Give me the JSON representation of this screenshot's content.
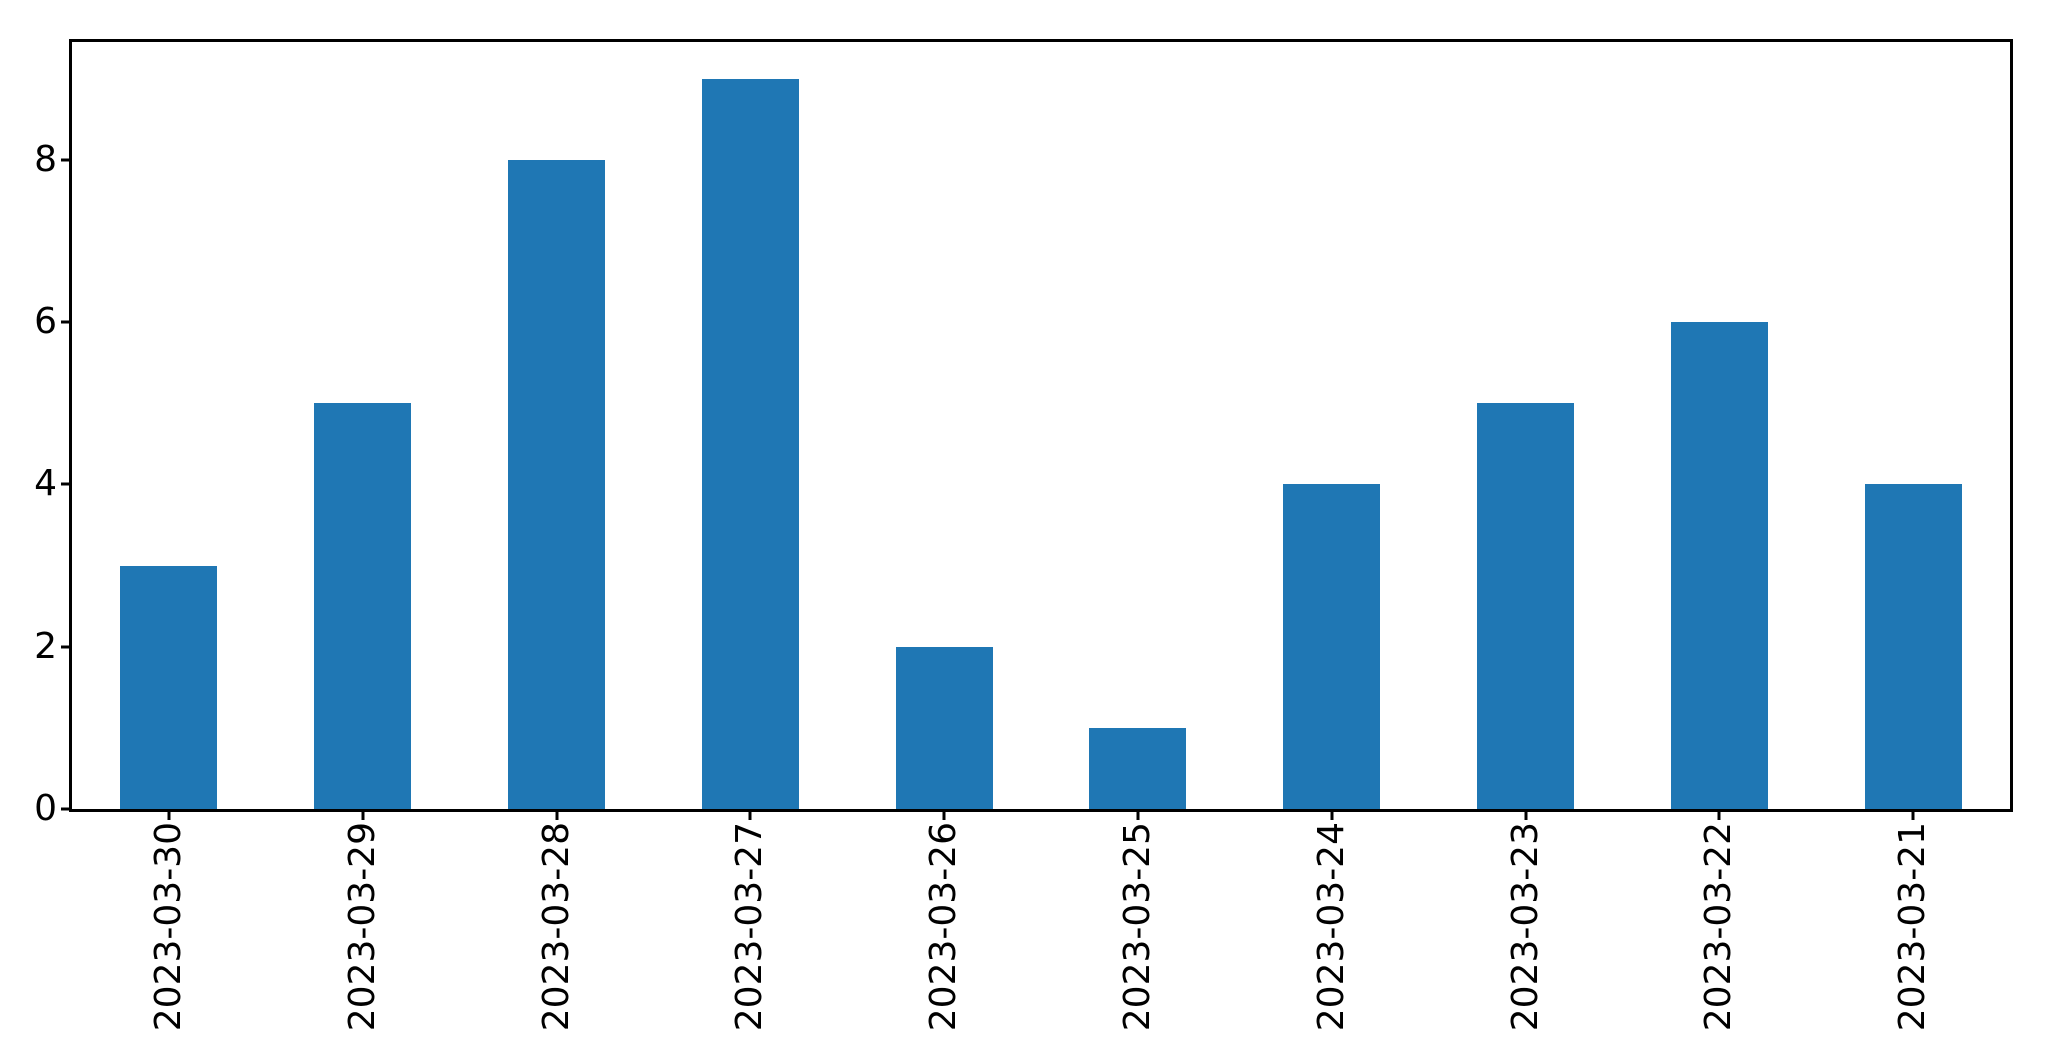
{
  "chart_data": {
    "type": "bar",
    "title": "",
    "xlabel": "",
    "ylabel": "",
    "categories": [
      "2023-03-30",
      "2023-03-29",
      "2023-03-28",
      "2023-03-27",
      "2023-03-26",
      "2023-03-25",
      "2023-03-24",
      "2023-03-23",
      "2023-03-22",
      "2023-03-21"
    ],
    "values": [
      3,
      5,
      8,
      9,
      2,
      1,
      4,
      5,
      6,
      4
    ],
    "ylim": [
      0,
      9.45
    ],
    "yticks": [
      0,
      2,
      4,
      6,
      8
    ],
    "x_tick_rotation": 90,
    "bar_color": "#1f77b4",
    "spine_color": "#000000",
    "text_color": "#000000",
    "background_color": "#ffffff",
    "grid": false,
    "legend": null
  }
}
